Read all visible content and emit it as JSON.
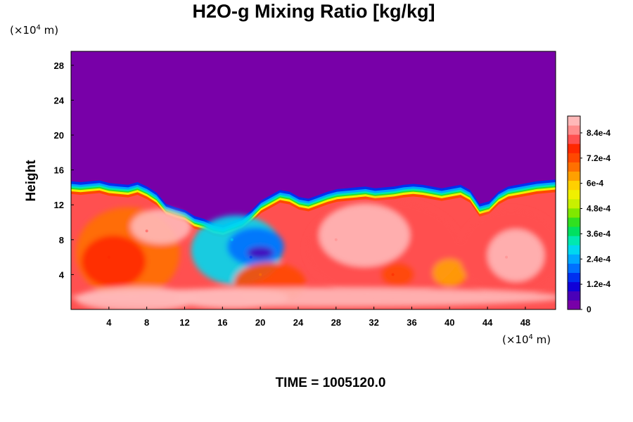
{
  "chart_data": {
    "type": "heatmap",
    "title": "H2O-g Mixing Ratio [kg/kg]",
    "footer": "TIME = 1005120.0",
    "ylabel": "Height",
    "x_unit_prefix": "(×10",
    "x_unit_exp": "4",
    "x_unit_suffix": " m)",
    "y_unit_prefix": "(×10",
    "y_unit_exp": "4",
    "y_unit_suffix": " m)",
    "xlim": [
      0,
      51.2
    ],
    "ylim": [
      0,
      29.6
    ],
    "xticks": [
      4,
      8,
      12,
      16,
      20,
      24,
      28,
      32,
      36,
      40,
      44,
      48
    ],
    "yticks": [
      4,
      8,
      12,
      16,
      20,
      24,
      28
    ],
    "colorbar": {
      "min": 0,
      "max": 0.00092,
      "labels": [
        {
          "value": 0,
          "text": "0"
        },
        {
          "value": 0.00012,
          "text": "1.2e-4"
        },
        {
          "value": 0.00024,
          "text": "2.4e-4"
        },
        {
          "value": 0.00036,
          "text": "3.6e-4"
        },
        {
          "value": 0.00048,
          "text": "4.8e-4"
        },
        {
          "value": 0.0006,
          "text": "6e-4"
        },
        {
          "value": 0.00072,
          "text": "7.2e-4"
        },
        {
          "value": 0.00084,
          "text": "8.4e-4"
        }
      ],
      "colors": [
        "#7800a8",
        "#4a00b8",
        "#1000d8",
        "#0030f0",
        "#0070ff",
        "#00a8ff",
        "#00d8f0",
        "#00e8b0",
        "#00e060",
        "#30e020",
        "#80e800",
        "#c8f000",
        "#f0f000",
        "#ffd000",
        "#ffa000",
        "#ff7000",
        "#ff4800",
        "#ff2800",
        "#ff5050",
        "#ff8c8c",
        "#ffb8b8"
      ]
    },
    "cloud_top_height": [
      13.8,
      13.7,
      13.8,
      13.9,
      13.6,
      13.5,
      13.4,
      13.7,
      13.2,
      12.5,
      11.2,
      10.8,
      10.5,
      9.8,
      9.5,
      9.0,
      8.8,
      9.2,
      9.6,
      10.5,
      11.6,
      12.2,
      12.8,
      12.6,
      12.0,
      11.8,
      12.2,
      12.6,
      12.9,
      13.0,
      13.1,
      13.2,
      13.0,
      13.1,
      13.2,
      13.4,
      13.5,
      13.4,
      13.2,
      13.0,
      13.2,
      13.4,
      12.8,
      11.2,
      11.5,
      12.6,
      13.2,
      13.4,
      13.6,
      13.8,
      13.9,
      14.0
    ],
    "field_samples": [
      {
        "x": 4,
        "y": 6,
        "value": 0.00078
      },
      {
        "x": 8,
        "y": 9,
        "value": 0.00082
      },
      {
        "x": 17,
        "y": 8,
        "value": 0.0003
      },
      {
        "x": 19,
        "y": 6,
        "value": 0.00014
      },
      {
        "x": 20,
        "y": 4,
        "value": 0.0007
      },
      {
        "x": 28,
        "y": 8,
        "value": 0.00086
      },
      {
        "x": 34,
        "y": 4,
        "value": 0.00078
      },
      {
        "x": 46,
        "y": 6,
        "value": 0.00084
      },
      {
        "x": 24,
        "y": 22,
        "value": 0
      }
    ]
  }
}
